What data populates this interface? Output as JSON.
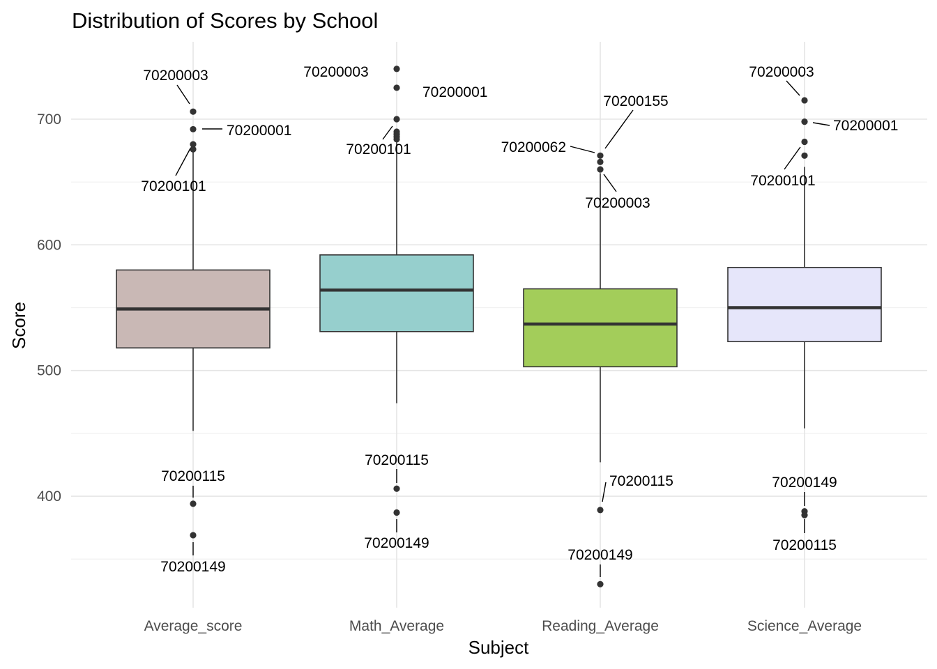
{
  "chart_data": {
    "type": "boxplot",
    "title": "Distribution of Scores by School",
    "xlabel": "Subject",
    "ylabel": "Score",
    "ylim": [
      320,
      750
    ],
    "y_ticks": [
      400,
      500,
      600,
      700
    ],
    "grid": true,
    "categories": [
      "Average_score",
      "Math_Average",
      "Reading_Average",
      "Science_Average"
    ],
    "boxes": [
      {
        "category": "Average_score",
        "color": "#c9b8b5",
        "whisker_low": 452,
        "q1": 518,
        "median": 549,
        "q3": 580,
        "whisker_high": 676,
        "outliers": [
          706,
          692,
          680,
          676,
          394,
          369
        ],
        "labels": [
          {
            "text": "70200003",
            "y": 706
          },
          {
            "text": "70200001",
            "y": 692
          },
          {
            "text": "70200101",
            "y": 680
          },
          {
            "text": "70200115",
            "y": 394
          },
          {
            "text": "70200149",
            "y": 369
          }
        ]
      },
      {
        "category": "Math_Average",
        "color": "#96cfcd",
        "whisker_low": 474,
        "q1": 531,
        "median": 564,
        "q3": 592,
        "whisker_high": 683,
        "outliers": [
          740,
          725,
          700,
          690,
          688,
          686,
          684,
          406,
          387
        ],
        "labels": [
          {
            "text": "70200003",
            "y": 740
          },
          {
            "text": "70200001",
            "y": 725
          },
          {
            "text": "70200101",
            "y": 690
          },
          {
            "text": "70200115",
            "y": 406
          },
          {
            "text": "70200149",
            "y": 387
          }
        ]
      },
      {
        "category": "Reading_Average",
        "color": "#a3cd5a",
        "whisker_low": 427,
        "q1": 503,
        "median": 537,
        "q3": 565,
        "whisker_high": 657,
        "outliers": [
          671,
          666,
          660,
          389,
          330
        ],
        "labels": [
          {
            "text": "70200155",
            "y": 671
          },
          {
            "text": "70200062",
            "y": 671
          },
          {
            "text": "70200003",
            "y": 660
          },
          {
            "text": "70200115",
            "y": 389
          },
          {
            "text": "70200149",
            "y": 330
          }
        ]
      },
      {
        "category": "Science_Average",
        "color": "#e6e6fa",
        "whisker_low": 454,
        "q1": 523,
        "median": 550,
        "q3": 582,
        "whisker_high": 662,
        "outliers": [
          715,
          698,
          682,
          671,
          388,
          385
        ],
        "labels": [
          {
            "text": "70200003",
            "y": 715
          },
          {
            "text": "70200001",
            "y": 698
          },
          {
            "text": "70200101",
            "y": 682
          },
          {
            "text": "70200149",
            "y": 388
          },
          {
            "text": "70200115",
            "y": 385
          }
        ]
      }
    ]
  }
}
